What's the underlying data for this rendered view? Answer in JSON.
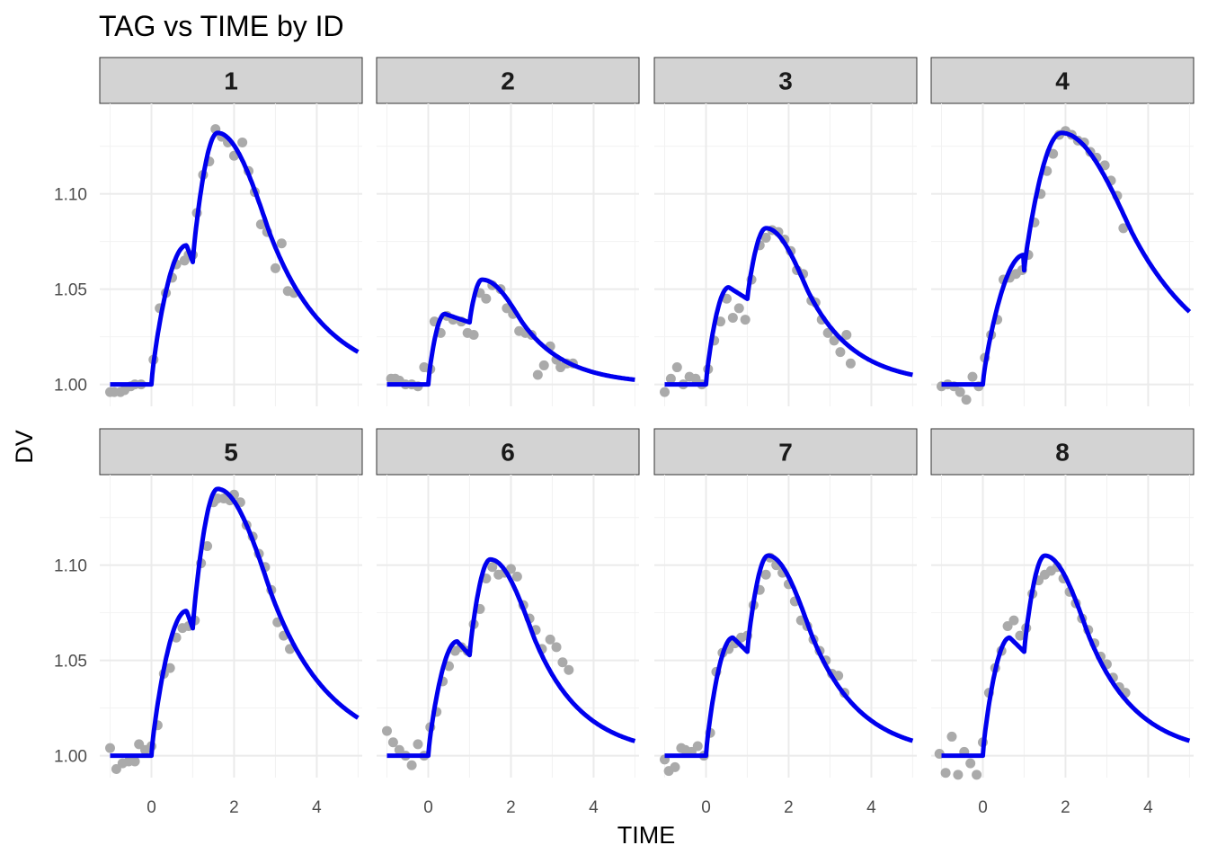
{
  "chart_data": {
    "type": "line",
    "title": "TAG vs TIME by ID",
    "xlabel": "TIME",
    "ylabel": "DV",
    "xlim": [
      -1.25,
      5.1
    ],
    "ylim": [
      0.9885,
      1.1475
    ],
    "x_ticks": [
      0,
      2,
      4
    ],
    "x_tick_labels": [
      "0",
      "2",
      "4"
    ],
    "y_ticks": [
      1.0,
      1.05,
      1.1
    ],
    "y_tick_labels": [
      "1.00",
      "1.05",
      "1.10"
    ],
    "grid": true,
    "legend": "none",
    "colors": {
      "line": "#0000ee",
      "points": "#aaaaaa",
      "strip_fill": "#d3d3d3",
      "grid": "#ebebeb"
    },
    "panels": [
      {
        "id": "1",
        "fit": {
          "a1": 0.073,
          "a2": 0.132,
          "peak1_t": 0.85,
          "peak2_t": 1.6,
          "tau": 1.25
        },
        "observed": {
          "x": [
            -1.0,
            -0.9,
            -0.75,
            -0.65,
            -0.5,
            -0.4,
            -0.25,
            0.05,
            0.2,
            0.35,
            0.5,
            0.6,
            0.8,
            0.9,
            1.0,
            1.1,
            1.25,
            1.4,
            1.55,
            1.7,
            1.85,
            2.0,
            2.2,
            2.35,
            2.5,
            2.65,
            2.8,
            3.0,
            3.15,
            3.3,
            3.45
          ],
          "y": [
            0.996,
            0.996,
            0.996,
            0.997,
            0.999,
            1.0,
            1.0,
            1.013,
            1.04,
            1.048,
            1.056,
            1.063,
            1.065,
            1.068,
            1.068,
            1.09,
            1.11,
            1.117,
            1.134,
            1.13,
            1.127,
            1.12,
            1.127,
            1.112,
            1.101,
            1.084,
            1.08,
            1.061,
            1.074,
            1.049,
            1.048
          ]
        }
      },
      {
        "id": "2",
        "fit": {
          "a1": 0.037,
          "a2": 0.055,
          "peak1_t": 0.4,
          "peak2_t": 1.3,
          "tau": 0.95
        },
        "observed": {
          "x": [
            -0.9,
            -0.8,
            -0.7,
            -0.55,
            -0.4,
            -0.25,
            -0.1,
            0.05,
            0.15,
            0.3,
            0.45,
            0.6,
            0.8,
            0.95,
            1.1,
            1.25,
            1.4,
            1.55,
            1.75,
            1.9,
            2.05,
            2.2,
            2.35,
            2.5,
            2.65,
            2.8,
            2.95,
            3.1,
            3.2,
            3.35,
            3.5
          ],
          "y": [
            1.003,
            1.003,
            1.002,
            1.0,
            1.0,
            0.999,
            1.009,
            1.008,
            1.033,
            1.027,
            1.036,
            1.034,
            1.033,
            1.027,
            1.026,
            1.048,
            1.045,
            1.052,
            1.05,
            1.04,
            1.037,
            1.028,
            1.027,
            1.026,
            1.005,
            1.01,
            1.02,
            1.013,
            1.009,
            1.011,
            1.011
          ]
        }
      },
      {
        "id": "3",
        "fit": {
          "a1": 0.051,
          "a2": 0.082,
          "peak1_t": 0.55,
          "peak2_t": 1.45,
          "tau": 1.0
        },
        "observed": {
          "x": [
            -1.0,
            -0.85,
            -0.7,
            -0.55,
            -0.4,
            -0.25,
            -0.1,
            0.05,
            0.2,
            0.35,
            0.5,
            0.65,
            0.8,
            0.95,
            1.1,
            1.3,
            1.45,
            1.6,
            1.75,
            1.9,
            2.05,
            2.2,
            2.35,
            2.55,
            2.65,
            2.8,
            2.95,
            3.1,
            3.25,
            3.4,
            3.5
          ],
          "y": [
            0.996,
            1.003,
            1.009,
            1.0,
            1.004,
            1.003,
            1.0,
            1.008,
            1.023,
            1.033,
            1.045,
            1.035,
            1.04,
            1.034,
            1.055,
            1.073,
            1.077,
            1.081,
            1.08,
            1.076,
            1.07,
            1.06,
            1.058,
            1.044,
            1.043,
            1.034,
            1.027,
            1.023,
            1.017,
            1.026,
            1.011
          ]
        }
      },
      {
        "id": "4",
        "fit": {
          "a1": 0.068,
          "a2": 0.132,
          "peak1_t": 1.0,
          "peak2_t": 1.9,
          "tau": 1.7
        },
        "observed": {
          "x": [
            -1.0,
            -0.85,
            -0.7,
            -0.55,
            -0.4,
            -0.25,
            -0.1,
            0.05,
            0.2,
            0.35,
            0.5,
            0.65,
            0.8,
            0.95,
            1.1,
            1.25,
            1.4,
            1.55,
            1.7,
            1.85,
            2.0,
            2.15,
            2.3,
            2.45,
            2.6,
            2.75,
            2.95,
            3.1,
            3.25,
            3.4
          ],
          "y": [
            0.999,
            1.0,
            0.999,
            0.996,
            0.992,
            1.004,
            0.999,
            1.014,
            1.026,
            1.034,
            1.055,
            1.056,
            1.058,
            1.06,
            1.068,
            1.085,
            1.1,
            1.112,
            1.121,
            1.131,
            1.133,
            1.131,
            1.128,
            1.127,
            1.122,
            1.119,
            1.115,
            1.107,
            1.099,
            1.082
          ]
        }
      },
      {
        "id": "5",
        "fit": {
          "a1": 0.076,
          "a2": 0.14,
          "peak1_t": 0.85,
          "peak2_t": 1.6,
          "tau": 1.3
        },
        "observed": {
          "x": [
            -1.0,
            -0.85,
            -0.7,
            -0.55,
            -0.4,
            -0.3,
            -0.15,
            0.0,
            0.15,
            0.3,
            0.45,
            0.6,
            0.75,
            0.9,
            1.05,
            1.2,
            1.35,
            1.5,
            1.6,
            1.75,
            1.9,
            2.0,
            2.15,
            2.3,
            2.45,
            2.6,
            2.75,
            2.9,
            3.05,
            3.2,
            3.35
          ],
          "y": [
            1.004,
            0.993,
            0.996,
            0.997,
            0.997,
            1.006,
            1.003,
            1.005,
            1.016,
            1.043,
            1.046,
            1.062,
            1.067,
            1.068,
            1.071,
            1.101,
            1.11,
            1.133,
            1.135,
            1.135,
            1.134,
            1.137,
            1.133,
            1.121,
            1.115,
            1.106,
            1.099,
            1.087,
            1.07,
            1.063,
            1.056
          ]
        }
      },
      {
        "id": "6",
        "fit": {
          "a1": 0.06,
          "a2": 0.103,
          "peak1_t": 0.7,
          "peak2_t": 1.5,
          "tau": 1.05
        },
        "observed": {
          "x": [
            -1.0,
            -0.85,
            -0.7,
            -0.55,
            -0.4,
            -0.25,
            -0.1,
            0.05,
            0.2,
            0.35,
            0.5,
            0.65,
            0.8,
            0.95,
            1.1,
            1.25,
            1.4,
            1.55,
            1.7,
            1.85,
            2.0,
            2.15,
            2.3,
            2.45,
            2.6,
            2.75,
            2.95,
            3.1,
            3.25,
            3.4
          ],
          "y": [
            1.013,
            1.007,
            1.003,
            1.0,
            0.995,
            1.006,
            1.0,
            1.015,
            1.023,
            1.039,
            1.047,
            1.055,
            1.057,
            1.055,
            1.069,
            1.077,
            1.093,
            1.099,
            1.095,
            1.096,
            1.098,
            1.094,
            1.079,
            1.072,
            1.066,
            1.056,
            1.061,
            1.057,
            1.049,
            1.045
          ]
        }
      },
      {
        "id": "7",
        "fit": {
          "a1": 0.062,
          "a2": 0.105,
          "peak1_t": 0.65,
          "peak2_t": 1.5,
          "tau": 1.05
        },
        "observed": {
          "x": [
            -1.0,
            -0.9,
            -0.75,
            -0.6,
            -0.5,
            -0.35,
            -0.2,
            -0.05,
            0.1,
            0.25,
            0.4,
            0.55,
            0.7,
            0.85,
            1.0,
            1.15,
            1.3,
            1.45,
            1.55,
            1.7,
            1.85,
            2.0,
            2.15,
            2.3,
            2.45,
            2.6,
            2.75,
            2.9,
            3.05,
            3.2,
            3.35
          ],
          "y": [
            0.998,
            0.992,
            0.994,
            1.004,
            1.003,
            1.002,
            1.005,
            1.0,
            1.012,
            1.044,
            1.054,
            1.056,
            1.059,
            1.062,
            1.063,
            1.079,
            1.087,
            1.095,
            1.104,
            1.1,
            1.096,
            1.09,
            1.081,
            1.071,
            1.068,
            1.061,
            1.055,
            1.05,
            1.043,
            1.042,
            1.033
          ]
        }
      },
      {
        "id": "8",
        "fit": {
          "a1": 0.062,
          "a2": 0.105,
          "peak1_t": 0.65,
          "peak2_t": 1.5,
          "tau": 1.05
        },
        "observed": {
          "x": [
            -1.05,
            -0.9,
            -0.75,
            -0.6,
            -0.45,
            -0.3,
            -0.15,
            0.0,
            0.15,
            0.3,
            0.45,
            0.6,
            0.75,
            0.9,
            1.05,
            1.2,
            1.35,
            1.5,
            1.65,
            1.8,
            1.95,
            2.1,
            2.25,
            2.4,
            2.55,
            2.7,
            2.85,
            3.0,
            3.15,
            3.3,
            3.45
          ],
          "y": [
            1.001,
            0.991,
            1.01,
            0.99,
            1.002,
            0.996,
            0.99,
            1.007,
            1.033,
            1.046,
            1.055,
            1.068,
            1.071,
            1.063,
            1.067,
            1.085,
            1.092,
            1.095,
            1.097,
            1.099,
            1.093,
            1.086,
            1.08,
            1.072,
            1.066,
            1.059,
            1.052,
            1.048,
            1.041,
            1.036,
            1.033
          ]
        }
      }
    ]
  }
}
